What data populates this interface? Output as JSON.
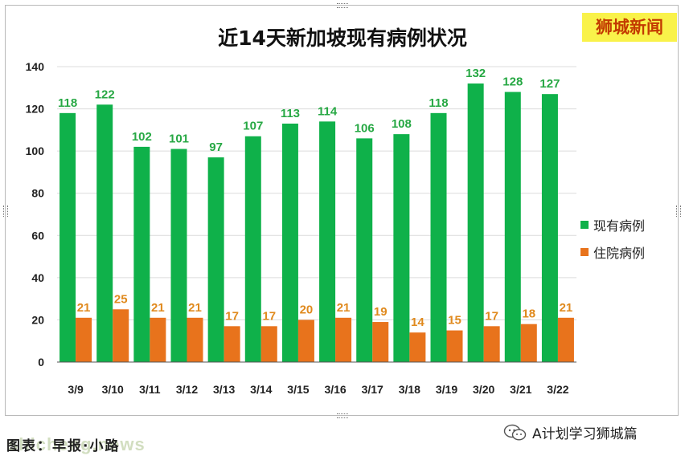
{
  "title": "近14天新加坡现有病例状况",
  "brand": "狮城新闻",
  "source_note": "图表：早报·小路",
  "watermark": "shicheng.news",
  "account": {
    "label": "A计划学习狮城篇",
    "icon": "wechat-icon"
  },
  "colors": {
    "series_existing": "#0fb14a",
    "series_hospital": "#e8731c"
  },
  "chart_data": {
    "type": "bar",
    "title": "近14天新加坡现有病例状况",
    "categories": [
      "3/9",
      "3/10",
      "3/11",
      "3/12",
      "3/13",
      "3/14",
      "3/15",
      "3/16",
      "3/17",
      "3/18",
      "3/19",
      "3/20",
      "3/21",
      "3/22"
    ],
    "series": [
      {
        "name": "现有病例",
        "values": [
          118,
          122,
          102,
          101,
          97,
          107,
          113,
          114,
          106,
          108,
          118,
          132,
          128,
          127
        ]
      },
      {
        "name": "住院病例",
        "values": [
          21,
          25,
          21,
          21,
          17,
          17,
          20,
          21,
          19,
          14,
          15,
          17,
          18,
          21
        ]
      }
    ],
    "y_ticks": [
      "0",
      "20",
      "40",
      "60",
      "80",
      "100",
      "120",
      "140"
    ],
    "ylim": [
      0,
      140
    ],
    "grid": true,
    "legend": "right",
    "data_labels": true
  }
}
